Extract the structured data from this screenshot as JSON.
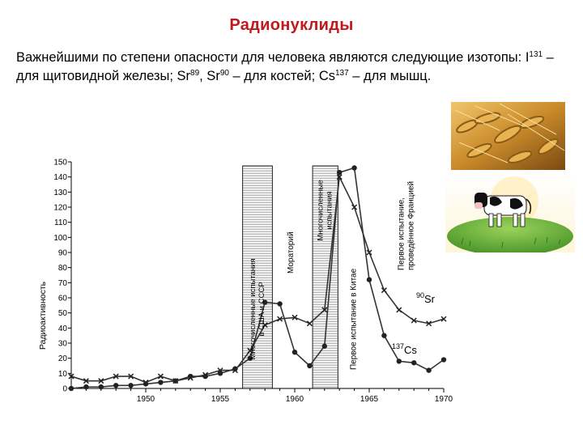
{
  "slide": {
    "title": "Радионуклиды",
    "paragraph": {
      "p1": "Важнейшими по степени опасности для человека являются следующие изотопы: I",
      "s1": "131",
      "p2": " – для щитовидной железы; Sr",
      "s2": "89",
      "p3": ", Sr",
      "s3": "90",
      "p4": " – для костей; Cs",
      "s4": "137",
      "p5": " – для мышц."
    }
  },
  "images": {
    "wheat": "wheat-photo",
    "cow": "cow-photo"
  },
  "chart_data": {
    "type": "line",
    "ylabel": "Радиоактивность",
    "xlabel": "",
    "xlim": [
      1945,
      1970
    ],
    "ylim": [
      0,
      150
    ],
    "xticks": [
      1950,
      1955,
      1960,
      1965,
      1970
    ],
    "yticks": [
      0,
      10,
      20,
      30,
      40,
      50,
      60,
      70,
      80,
      90,
      100,
      110,
      120,
      130,
      140,
      150
    ],
    "grid": false,
    "series": [
      {
        "name": "Cs",
        "mass": "137",
        "marker": "dot",
        "color": "#333333",
        "x": [
          1945,
          1946,
          1947,
          1948,
          1949,
          1950,
          1951,
          1952,
          1953,
          1954,
          1955,
          1956,
          1957,
          1958,
          1959,
          1960,
          1961,
          1962,
          1963,
          1964,
          1965,
          1966,
          1967,
          1968,
          1969,
          1970
        ],
        "y": [
          0,
          1,
          1,
          2,
          2,
          3,
          4,
          5,
          8,
          8,
          10,
          13,
          20,
          57,
          56,
          24,
          15,
          28,
          143,
          146,
          72,
          35,
          18,
          17,
          12,
          19
        ]
      },
      {
        "name": "Sr",
        "mass": "90",
        "marker": "x",
        "color": "#333333",
        "x": [
          1945,
          1946,
          1947,
          1948,
          1949,
          1950,
          1951,
          1952,
          1953,
          1954,
          1955,
          1956,
          1957,
          1958,
          1959,
          1960,
          1961,
          1962,
          1963,
          1964,
          1965,
          1966,
          1967,
          1968,
          1969,
          1970
        ],
        "y": [
          8,
          5,
          5,
          8,
          8,
          4,
          8,
          5,
          7,
          9,
          12,
          12,
          25,
          42,
          46,
          47,
          43,
          52,
          140,
          120,
          90,
          65,
          52,
          45,
          43,
          46
        ]
      }
    ],
    "bands": [
      {
        "x0": 1956.5,
        "x1": 1958.5,
        "label": "Многочисленные испытания в США и СССР"
      },
      {
        "x0": 1961.2,
        "x1": 1962.9,
        "label": "Многочисленные испытания"
      }
    ],
    "annotations": [
      {
        "x": 1959.9,
        "text": "Мораторий"
      },
      {
        "x": 1964.1,
        "text": "Первое испытание в Китае"
      },
      {
        "x": 1967.3,
        "text": "Первое испытание, проведённое Францией"
      }
    ]
  }
}
